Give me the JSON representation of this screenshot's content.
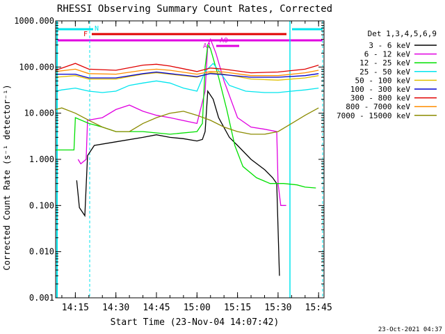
{
  "chart_data": {
    "type": "line",
    "title": "RHESSI Observing Summary Count Rates, Corrected",
    "ylabel": "Corrected Count Rate (s⁻¹ detector⁻¹)",
    "xlabel": "Start Time (23-Nov-04 14:07:42)",
    "y_scale": "log",
    "ylim": [
      0.001,
      1000
    ],
    "xlim": [
      "14:07:42",
      "15:47:00"
    ],
    "y_ticks": [
      "1000.000",
      "100.000",
      "10.000",
      "1.000",
      "0.100",
      "0.010",
      "0.001"
    ],
    "x_ticks": [
      "14:15",
      "14:30",
      "14:45",
      "15:00",
      "15:15",
      "15:30",
      "15:45"
    ],
    "timestamp": "23-Oct-2021 04:37",
    "legend": {
      "title": "Det 1,3,4,5,6,9",
      "placement": "right"
    },
    "flags": [
      {
        "label": "N",
        "color": "#00e5ee"
      },
      {
        "label": "F",
        "color": "#e00000"
      },
      {
        "label": "A1",
        "color": "#e000e0"
      },
      {
        "label": "A0",
        "color": "#e000e0"
      }
    ],
    "attenuator_state_label": "A1",
    "series": [
      {
        "name": "3 - 6 keV",
        "color": "#000000",
        "points": [
          [
            "14:15:30",
            0.35
          ],
          [
            "14:16:30",
            0.09
          ],
          [
            "14:18:30",
            0.06
          ],
          [
            "14:19:30",
            1.2
          ],
          [
            "14:22:00",
            2.0
          ],
          [
            "14:30:00",
            2.4
          ],
          [
            "14:40:00",
            3.0
          ],
          [
            "14:45:00",
            3.4
          ],
          [
            "14:50:00",
            3.0
          ],
          [
            "14:55:00",
            2.8
          ],
          [
            "15:00:00",
            2.5
          ],
          [
            "15:02:00",
            2.7
          ],
          [
            "15:03:00",
            4.0
          ],
          [
            "15:04:00",
            30
          ],
          [
            "15:06:00",
            20
          ],
          [
            "15:08:00",
            8
          ],
          [
            "15:12:00",
            3.0
          ],
          [
            "15:15:00",
            2.0
          ],
          [
            "15:20:00",
            1.0
          ],
          [
            "15:25:00",
            0.6
          ],
          [
            "15:28:00",
            0.4
          ],
          [
            "15:29:30",
            0.3
          ],
          [
            "15:30:30",
            0.003
          ]
        ]
      },
      {
        "name": "6 - 12 keV",
        "color": "#e000e0",
        "points": [
          [
            "14:16:00",
            1.0
          ],
          [
            "14:17:00",
            0.8
          ],
          [
            "14:19:00",
            1.0
          ],
          [
            "14:19:30",
            7
          ],
          [
            "14:25:00",
            8
          ],
          [
            "14:30:00",
            12
          ],
          [
            "14:35:00",
            15
          ],
          [
            "14:40:00",
            11
          ],
          [
            "14:45:00",
            9
          ],
          [
            "14:50:00",
            8
          ],
          [
            "15:00:00",
            6
          ],
          [
            "15:03:00",
            30
          ],
          [
            "15:04:00",
            300
          ],
          [
            "15:05:00",
            400
          ],
          [
            "15:07:00",
            200
          ],
          [
            "15:10:00",
            50
          ],
          [
            "15:15:00",
            8
          ],
          [
            "15:20:00",
            5
          ],
          [
            "15:25:00",
            4.5
          ],
          [
            "15:29:30",
            4.0
          ],
          [
            "15:30:00",
            0.3
          ],
          [
            "15:31:00",
            0.1
          ],
          [
            "15:33:00",
            0.1
          ]
        ]
      },
      {
        "name": "12 - 25 keV",
        "color": "#00e000",
        "points": [
          [
            "14:07:42",
            1.6
          ],
          [
            "14:13:00",
            1.6
          ],
          [
            "14:14:30",
            1.6
          ],
          [
            "14:15:00",
            8
          ],
          [
            "14:20:00",
            6
          ],
          [
            "14:25:00",
            5
          ],
          [
            "14:30:00",
            4
          ],
          [
            "14:40:00",
            4
          ],
          [
            "14:50:00",
            3.5
          ],
          [
            "15:00:00",
            4
          ],
          [
            "15:02:00",
            6
          ],
          [
            "15:03:00",
            100
          ],
          [
            "15:04:00",
            300
          ],
          [
            "15:05:00",
            250
          ],
          [
            "15:08:00",
            60
          ],
          [
            "15:11:00",
            12
          ],
          [
            "15:14:00",
            2
          ],
          [
            "15:17:00",
            0.7
          ],
          [
            "15:22:00",
            0.4
          ],
          [
            "15:27:00",
            0.3
          ],
          [
            "15:32:00",
            0.3
          ],
          [
            "15:37:00",
            0.28
          ],
          [
            "15:40:00",
            0.25
          ],
          [
            "15:44:00",
            0.24
          ]
        ]
      },
      {
        "name": "25 - 50 keV",
        "color": "#00e5ee",
        "points": [
          [
            "14:07:42",
            30
          ],
          [
            "14:10:00",
            32
          ],
          [
            "14:15:00",
            35
          ],
          [
            "14:20:00",
            30
          ],
          [
            "14:25:00",
            28
          ],
          [
            "14:30:00",
            30
          ],
          [
            "14:35:00",
            40
          ],
          [
            "14:40:00",
            45
          ],
          [
            "14:45:00",
            50
          ],
          [
            "14:50:00",
            45
          ],
          [
            "14:55:00",
            35
          ],
          [
            "15:00:00",
            30
          ],
          [
            "15:03:00",
            80
          ],
          [
            "15:06:00",
            120
          ],
          [
            "15:09:00",
            70
          ],
          [
            "15:12:00",
            40
          ],
          [
            "15:18:00",
            30
          ],
          [
            "15:25:00",
            28
          ],
          [
            "15:30:00",
            28
          ],
          [
            "15:35:00",
            30
          ],
          [
            "15:40:00",
            32
          ],
          [
            "15:45:00",
            35
          ]
        ]
      },
      {
        "name": "50 - 100 keV",
        "color": "#e0c000",
        "points": [
          [
            "14:07:42",
            60
          ],
          [
            "14:15:00",
            65
          ],
          [
            "14:20:00",
            55
          ],
          [
            "14:30:00",
            55
          ],
          [
            "14:40:00",
            70
          ],
          [
            "14:45:00",
            75
          ],
          [
            "14:50:00",
            70
          ],
          [
            "15:00:00",
            60
          ],
          [
            "15:05:00",
            75
          ],
          [
            "15:10:00",
            70
          ],
          [
            "15:20:00",
            55
          ],
          [
            "15:30:00",
            52
          ],
          [
            "15:40:00",
            58
          ],
          [
            "15:45:00",
            65
          ]
        ]
      },
      {
        "name": "100 - 300 keV",
        "color": "#0000d0",
        "points": [
          [
            "14:07:42",
            70
          ],
          [
            "14:15:00",
            70
          ],
          [
            "14:20:00",
            58
          ],
          [
            "14:30:00",
            58
          ],
          [
            "14:40:00",
            72
          ],
          [
            "14:45:00",
            78
          ],
          [
            "14:50:00",
            72
          ],
          [
            "15:00:00",
            62
          ],
          [
            "15:05:00",
            72
          ],
          [
            "15:10:00",
            68
          ],
          [
            "15:20:00",
            60
          ],
          [
            "15:30:00",
            60
          ],
          [
            "15:40:00",
            65
          ],
          [
            "15:45:00",
            72
          ]
        ]
      },
      {
        "name": "300 - 800 keV",
        "color": "#e00000",
        "points": [
          [
            "14:07:42",
            85
          ],
          [
            "14:15:00",
            120
          ],
          [
            "14:20:00",
            90
          ],
          [
            "14:30:00",
            85
          ],
          [
            "14:40:00",
            110
          ],
          [
            "14:45:00",
            115
          ],
          [
            "14:50:00",
            105
          ],
          [
            "15:00:00",
            80
          ],
          [
            "15:05:00",
            95
          ],
          [
            "15:10:00",
            90
          ],
          [
            "15:20:00",
            75
          ],
          [
            "15:30:00",
            78
          ],
          [
            "15:40:00",
            90
          ],
          [
            "15:45:00",
            110
          ]
        ]
      },
      {
        "name": "800 - 7000 keV",
        "color": "#ff8c00",
        "points": [
          [
            "14:07:42",
            80
          ],
          [
            "14:15:00",
            90
          ],
          [
            "14:20:00",
            72
          ],
          [
            "14:30:00",
            70
          ],
          [
            "14:40:00",
            85
          ],
          [
            "14:45:00",
            90
          ],
          [
            "14:50:00",
            85
          ],
          [
            "15:00:00",
            70
          ],
          [
            "15:05:00",
            80
          ],
          [
            "15:10:00",
            78
          ],
          [
            "15:20:00",
            65
          ],
          [
            "15:30:00",
            65
          ],
          [
            "15:40:00",
            75
          ],
          [
            "15:45:00",
            85
          ]
        ]
      },
      {
        "name": "7000 - 15000 keV",
        "color": "#8b8b00",
        "points": [
          [
            "14:07:42",
            12
          ],
          [
            "14:10:00",
            13
          ],
          [
            "14:15:00",
            10
          ],
          [
            "14:20:00",
            7
          ],
          [
            "14:25:00",
            5
          ],
          [
            "14:30:00",
            4
          ],
          [
            "14:35:00",
            4
          ],
          [
            "14:40:00",
            6
          ],
          [
            "14:45:00",
            8
          ],
          [
            "14:50:00",
            10
          ],
          [
            "14:55:00",
            11
          ],
          [
            "15:00:00",
            9
          ],
          [
            "15:05:00",
            7
          ],
          [
            "15:10:00",
            5
          ],
          [
            "15:15:00",
            4
          ],
          [
            "15:20:00",
            3.5
          ],
          [
            "15:25:00",
            3.5
          ],
          [
            "15:30:00",
            4
          ],
          [
            "15:35:00",
            6
          ],
          [
            "15:40:00",
            9
          ],
          [
            "15:45:00",
            13
          ]
        ]
      }
    ]
  }
}
